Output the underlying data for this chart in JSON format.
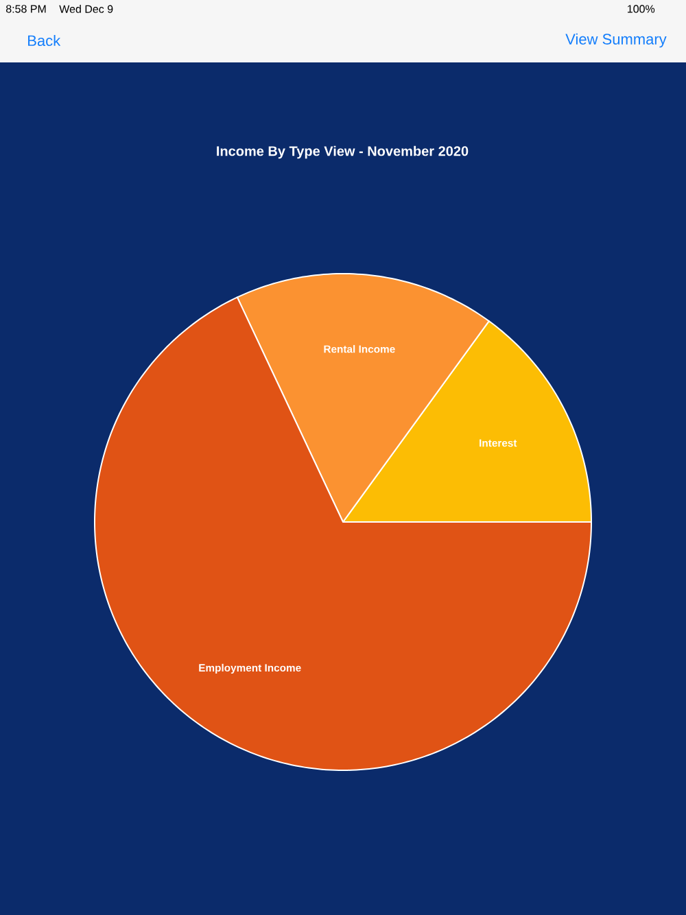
{
  "chart_data": {
    "type": "pie",
    "title": "Income By Type View - November 2020",
    "categories": [
      "Interest",
      "Rental Income",
      "Employment Income"
    ],
    "values": [
      15,
      17,
      68
    ],
    "colors": [
      "#fcbd04",
      "#fb9231",
      "#e05315"
    ],
    "annotations": [
      "8:58 PM",
      "Wed Dec 9",
      "100%",
      "Back",
      "View Summary"
    ]
  }
}
